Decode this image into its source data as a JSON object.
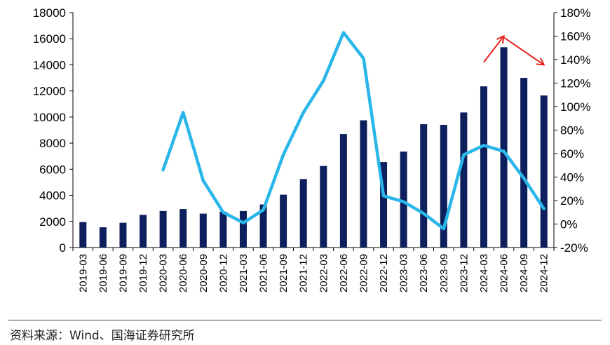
{
  "source_note": "资料来源：Wind、国海证券研究所",
  "chart_data": {
    "type": "bar",
    "categories": [
      "2019-03",
      "2019-06",
      "2019-09",
      "2019-12",
      "2020-03",
      "2020-06",
      "2020-09",
      "2020-12",
      "2021-03",
      "2021-06",
      "2021-09",
      "2021-12",
      "2022-03",
      "2022-06",
      "2022-09",
      "2022-12",
      "2023-03",
      "2023-06",
      "2023-09",
      "2023-12",
      "2024-03",
      "2024-06",
      "2024-09",
      "2024-12"
    ],
    "series": [
      {
        "type": "bar",
        "axis": "left",
        "color": "#0d1f5c",
        "values": [
          1950,
          1550,
          1900,
          2500,
          2800,
          2950,
          2600,
          2750,
          2800,
          3300,
          4050,
          5250,
          6250,
          8700,
          9750,
          6550,
          7350,
          9450,
          9400,
          10350,
          12350,
          15350,
          13000,
          11650
        ]
      },
      {
        "type": "line",
        "axis": "right",
        "color": "#29b6e8",
        "values": [
          null,
          null,
          null,
          null,
          46,
          95,
          37,
          10,
          1,
          12,
          59,
          95,
          122,
          163,
          141,
          24,
          19,
          9,
          -4,
          59,
          67,
          62,
          39,
          13
        ]
      }
    ],
    "y_left": {
      "ylim": [
        0,
        18000
      ],
      "ticks": [
        "0",
        "2000",
        "4000",
        "6000",
        "8000",
        "10000",
        "12000",
        "14000",
        "16000",
        "18000"
      ]
    },
    "y_right": {
      "ylim": [
        -20,
        180
      ],
      "ticks": [
        "-20%",
        "0%",
        "20%",
        "40%",
        "60%",
        "80%",
        "100%",
        "120%",
        "140%",
        "160%",
        "180%"
      ]
    },
    "annotations": [
      {
        "type": "arrow",
        "color": "#e8231f",
        "from": {
          "x": "2024-03",
          "y": 14200
        },
        "to": {
          "x": "2024-06",
          "y": 16200
        }
      },
      {
        "type": "arrow",
        "color": "#e8231f",
        "from": {
          "x": "2024-06",
          "y": 16100
        },
        "to": {
          "x": "2024-12",
          "y": 14000
        }
      }
    ],
    "grid": false,
    "legend": "none"
  }
}
